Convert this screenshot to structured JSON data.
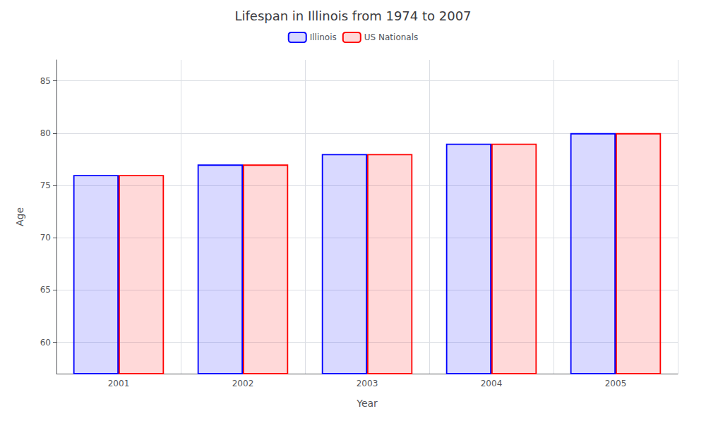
{
  "chart_data": {
    "type": "bar",
    "title": "Lifespan in Illinois from 1974 to 2007",
    "xlabel": "Year",
    "ylabel": "Age",
    "categories": [
      "2001",
      "2002",
      "2003",
      "2004",
      "2005"
    ],
    "series": [
      {
        "name": "Illinois",
        "color": "#0000ff",
        "values": [
          76.0,
          77.0,
          78.0,
          79.0,
          80.0
        ]
      },
      {
        "name": "US Nationals",
        "color": "#ff0000",
        "values": [
          76.0,
          77.0,
          78.0,
          79.0,
          80.0
        ]
      }
    ],
    "ylim": [
      57,
      87
    ],
    "yticks": [
      60,
      65,
      70,
      75,
      80,
      85
    ],
    "grid": true,
    "legend": "top"
  }
}
